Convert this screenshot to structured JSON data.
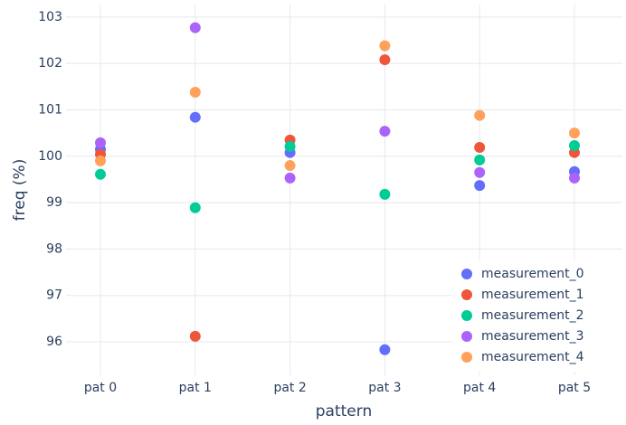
{
  "chart_data": {
    "type": "scatter",
    "x_label": "pattern",
    "y_label": "freq (%)",
    "categories": [
      "pat 0",
      "pat 1",
      "pat 2",
      "pat 3",
      "pat 4",
      "pat 5"
    ],
    "series": [
      {
        "name": "measurement_0",
        "color": "#636efa",
        "values": [
          100.15,
          100.84,
          100.08,
          95.83,
          99.37,
          99.67
        ]
      },
      {
        "name": "measurement_1",
        "color": "#ef553b",
        "values": [
          100.04,
          96.12,
          100.35,
          102.08,
          100.19,
          100.08
        ]
      },
      {
        "name": "measurement_2",
        "color": "#00cc96",
        "values": [
          99.61,
          98.89,
          100.21,
          99.18,
          99.92,
          100.23
        ]
      },
      {
        "name": "measurement_3",
        "color": "#ab63fa",
        "values": [
          100.29,
          102.77,
          99.53,
          100.54,
          99.65,
          99.53
        ]
      },
      {
        "name": "measurement_4",
        "color": "#ffa15a",
        "values": [
          99.9,
          101.38,
          99.8,
          102.38,
          100.88,
          100.5
        ]
      }
    ],
    "ylim": [
      95.28,
      103.27
    ],
    "yticks": [
      96,
      97,
      98,
      99,
      100,
      101,
      102,
      103
    ],
    "grid": true,
    "legend": "bottom-right"
  }
}
